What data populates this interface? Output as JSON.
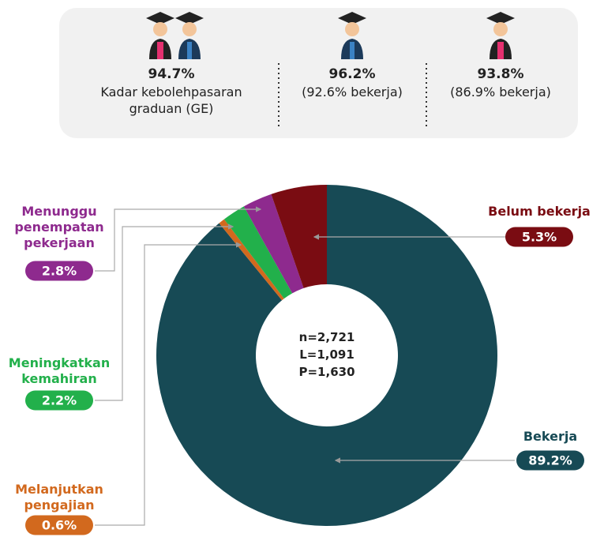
{
  "summary": [
    {
      "value": "94.7%",
      "label": "Kadar kebolehpasaran graduan (GE)"
    },
    {
      "value": "96.2%",
      "label": "(92.6% bekerja)"
    },
    {
      "value": "93.8%",
      "label": "(86.9% bekerja)"
    }
  ],
  "chart_data": {
    "type": "donut",
    "categories": [
      "Bekerja",
      "Melanjutkan pengajian",
      "Meningkatkan kemahiran",
      "Menunggu penempatan pekerjaan",
      "Belum bekerja"
    ],
    "values": [
      89.2,
      0.6,
      2.2,
      2.8,
      5.3
    ],
    "value_labels": [
      "89.2%",
      "0.6%",
      "2.2%",
      "2.8%",
      "5.3%"
    ],
    "colors": [
      "#174a55",
      "#d2691e",
      "#22b04b",
      "#8e2a8e",
      "#7a0c12"
    ],
    "annotations": [
      "n=2,721",
      "L=1,091",
      "P=1,630"
    ]
  }
}
